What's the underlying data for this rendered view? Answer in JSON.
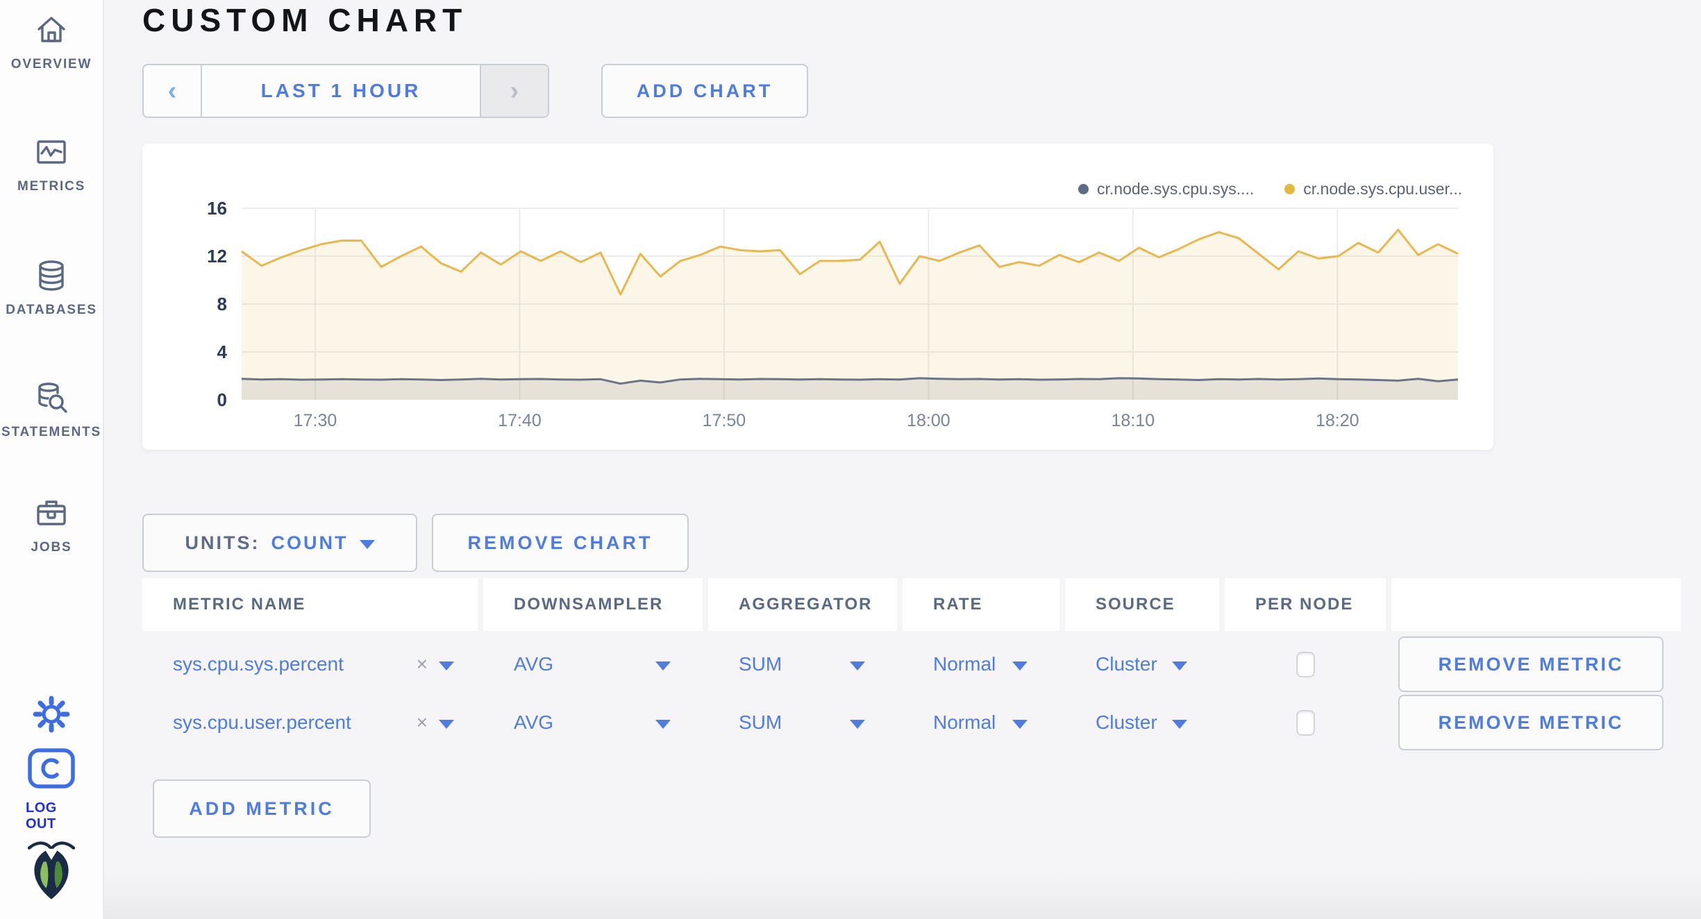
{
  "header": {
    "title": "CUSTOM CHART"
  },
  "sidebar": {
    "items": [
      {
        "id": "overview",
        "label": "OVERVIEW"
      },
      {
        "id": "metrics",
        "label": "METRICS"
      },
      {
        "id": "databases",
        "label": "DATABASES"
      },
      {
        "id": "statements",
        "label": "STATEMENTS"
      },
      {
        "id": "jobs",
        "label": "JOBS"
      }
    ],
    "log_out_label": "LOG OUT"
  },
  "toolbar": {
    "time_range_label": "LAST 1 HOUR",
    "prev_glyph": "‹",
    "next_glyph": "›",
    "add_chart_label": "ADD CHART"
  },
  "chart_controls": {
    "units_label": "UNITS:",
    "units_value": "COUNT",
    "remove_chart_label": "REMOVE CHART",
    "remove_metric_label": "REMOVE METRIC",
    "add_metric_label": "ADD METRIC",
    "clear_metric_glyph": "×"
  },
  "metrics_table": {
    "columns": [
      "METRIC NAME",
      "DOWNSAMPLER",
      "AGGREGATOR",
      "RATE",
      "SOURCE",
      "PER NODE",
      ""
    ],
    "rows": [
      {
        "metric_name": "sys.cpu.sys.percent",
        "downsampler": "AVG",
        "aggregator": "SUM",
        "rate": "Normal",
        "source": "Cluster",
        "per_node": false
      },
      {
        "metric_name": "sys.cpu.user.percent",
        "downsampler": "AVG",
        "aggregator": "SUM",
        "rate": "Normal",
        "source": "Cluster",
        "per_node": false
      }
    ]
  },
  "chart_data": {
    "type": "area",
    "title": "",
    "xlabel": "",
    "ylabel": "",
    "ylim": [
      0,
      16
    ],
    "y_ticks": [
      0,
      4,
      8,
      12,
      16
    ],
    "grid": true,
    "legend_position": "top-right",
    "x_range_minutes": [
      0,
      59.5
    ],
    "x_ticks": [
      {
        "label": "17:30",
        "minute": 3.6
      },
      {
        "label": "17:40",
        "minute": 13.6
      },
      {
        "label": "17:50",
        "minute": 23.6
      },
      {
        "label": "18:00",
        "minute": 33.6
      },
      {
        "label": "18:10",
        "minute": 43.6
      },
      {
        "label": "18:20",
        "minute": 53.6
      }
    ],
    "legend": [
      {
        "name": "cr.node.sys.cpu.sys....",
        "color": "#5F6C87"
      },
      {
        "name": "cr.node.sys.cpu.user...",
        "color": "#E5B83F"
      }
    ],
    "series": [
      {
        "name": "cr.node.sys.cpu.sys....",
        "color": "#6B7487",
        "fill": "rgba(100,110,135,0.16)",
        "values": [
          1.75,
          1.7,
          1.72,
          1.68,
          1.7,
          1.72,
          1.7,
          1.68,
          1.72,
          1.7,
          1.65,
          1.7,
          1.75,
          1.7,
          1.72,
          1.74,
          1.7,
          1.68,
          1.72,
          1.35,
          1.6,
          1.45,
          1.7,
          1.75,
          1.72,
          1.7,
          1.74,
          1.72,
          1.7,
          1.72,
          1.7,
          1.68,
          1.72,
          1.7,
          1.8,
          1.75,
          1.72,
          1.74,
          1.7,
          1.72,
          1.68,
          1.7,
          1.74,
          1.72,
          1.8,
          1.78,
          1.72,
          1.7,
          1.65,
          1.72,
          1.7,
          1.74,
          1.7,
          1.72,
          1.78,
          1.72,
          1.7,
          1.65,
          1.6,
          1.75,
          1.55,
          1.7
        ]
      },
      {
        "name": "cr.node.sys.cpu.user...",
        "color": "#E8B84E",
        "fill": "rgba(232,185,76,0.13)",
        "values": [
          12.4,
          11.2,
          11.9,
          12.5,
          13.0,
          13.3,
          13.3,
          11.1,
          12.0,
          12.8,
          11.4,
          10.7,
          12.3,
          11.3,
          12.4,
          11.6,
          12.4,
          11.5,
          12.3,
          8.8,
          12.2,
          10.3,
          11.6,
          12.1,
          12.8,
          12.5,
          12.4,
          12.5,
          10.5,
          11.6,
          11.6,
          11.7,
          13.2,
          9.7,
          12.0,
          11.6,
          12.3,
          12.9,
          11.1,
          11.5,
          11.2,
          12.1,
          11.5,
          12.3,
          11.6,
          12.7,
          11.9,
          12.6,
          13.4,
          14.0,
          13.5,
          12.2,
          10.9,
          12.4,
          11.8,
          12.0,
          13.1,
          12.3,
          14.2,
          12.1,
          13.0,
          12.2
        ]
      }
    ]
  },
  "colors": {
    "accent_blue": "#4E7CE0",
    "logout_blue": "#1F2FD9",
    "sidebar_grey": "#5A6884",
    "series_yellow": "#E8B84E",
    "series_grey": "#6B7487",
    "page_bg": "#F5F5F7"
  }
}
